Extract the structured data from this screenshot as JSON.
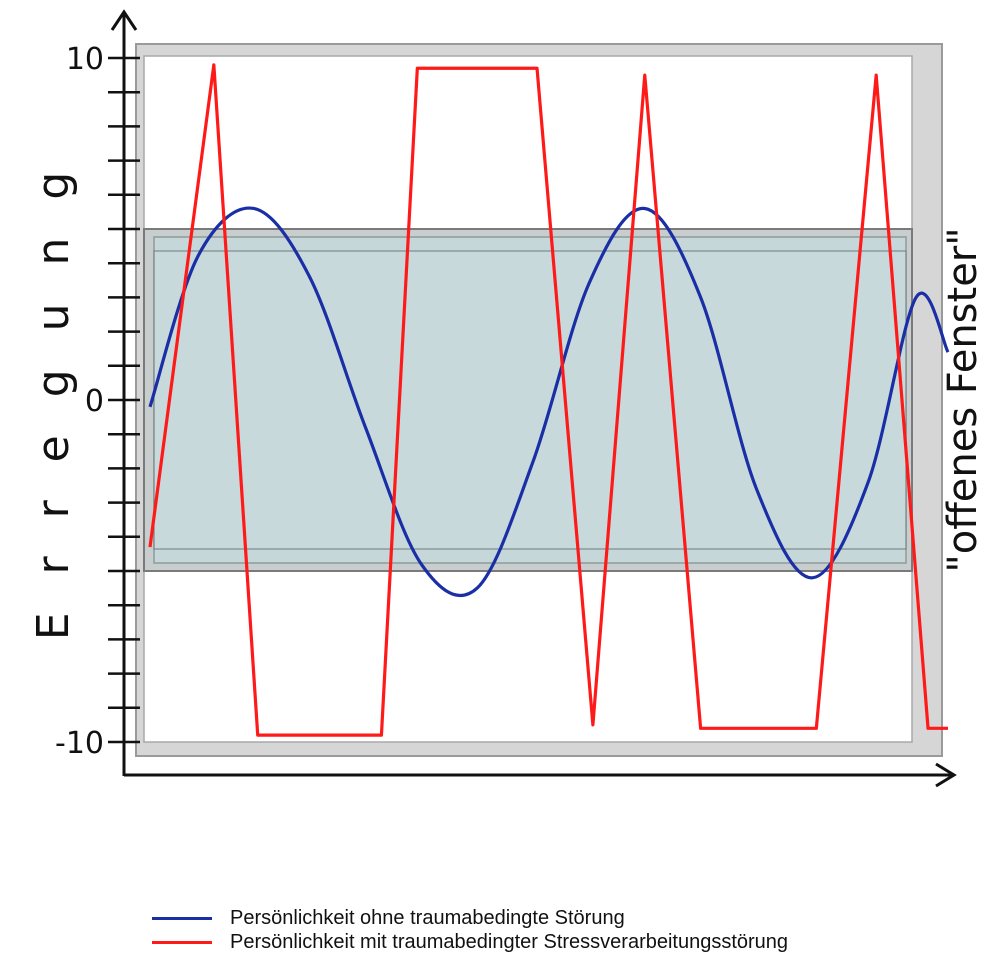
{
  "chart_data": {
    "type": "line",
    "ylabel": "E r r e g u n g",
    "side_label": "\"offenes Fenster\"",
    "ylim": [
      -10,
      10
    ],
    "y_ticks": [
      {
        "value": 10,
        "label": "10"
      },
      {
        "value": 0,
        "label": "0"
      },
      {
        "value": -10,
        "label": "-10"
      }
    ],
    "window_band": [
      -5,
      5
    ],
    "x": [
      0,
      0.125,
      0.25,
      0.375,
      0.5,
      0.625,
      0.75,
      0.875,
      1.0
    ],
    "series": [
      {
        "name": "Persönlichkeit ohne traumabedingte Störung",
        "color": "#1a2fa6",
        "x": [
          0,
          0.06,
          0.13,
          0.2,
          0.27,
          0.34,
          0.41,
          0.48,
          0.55,
          0.62,
          0.69,
          0.76,
          0.83,
          0.9,
          0.96,
          1.0
        ],
        "values": [
          -0.2,
          4.2,
          5.6,
          3.6,
          -0.8,
          -4.8,
          -5.5,
          -1.8,
          3.4,
          5.6,
          3.0,
          -2.6,
          -5.2,
          -2.4,
          3.0,
          1.4
        ]
      },
      {
        "name": "Persönlichkeit mit traumabedingter Stressverarbeitungsstörung",
        "color": "#ff1a1a",
        "x": [
          0,
          0.08,
          0.135,
          0.29,
          0.335,
          0.485,
          0.555,
          0.62,
          0.69,
          0.835,
          0.91,
          0.975,
          1.0
        ],
        "values": [
          -4.3,
          9.8,
          -9.8,
          -9.8,
          9.7,
          9.7,
          -9.5,
          9.5,
          -9.6,
          -9.6,
          9.5,
          -9.6,
          -9.6
        ]
      }
    ],
    "legend_placement": "bottom"
  }
}
